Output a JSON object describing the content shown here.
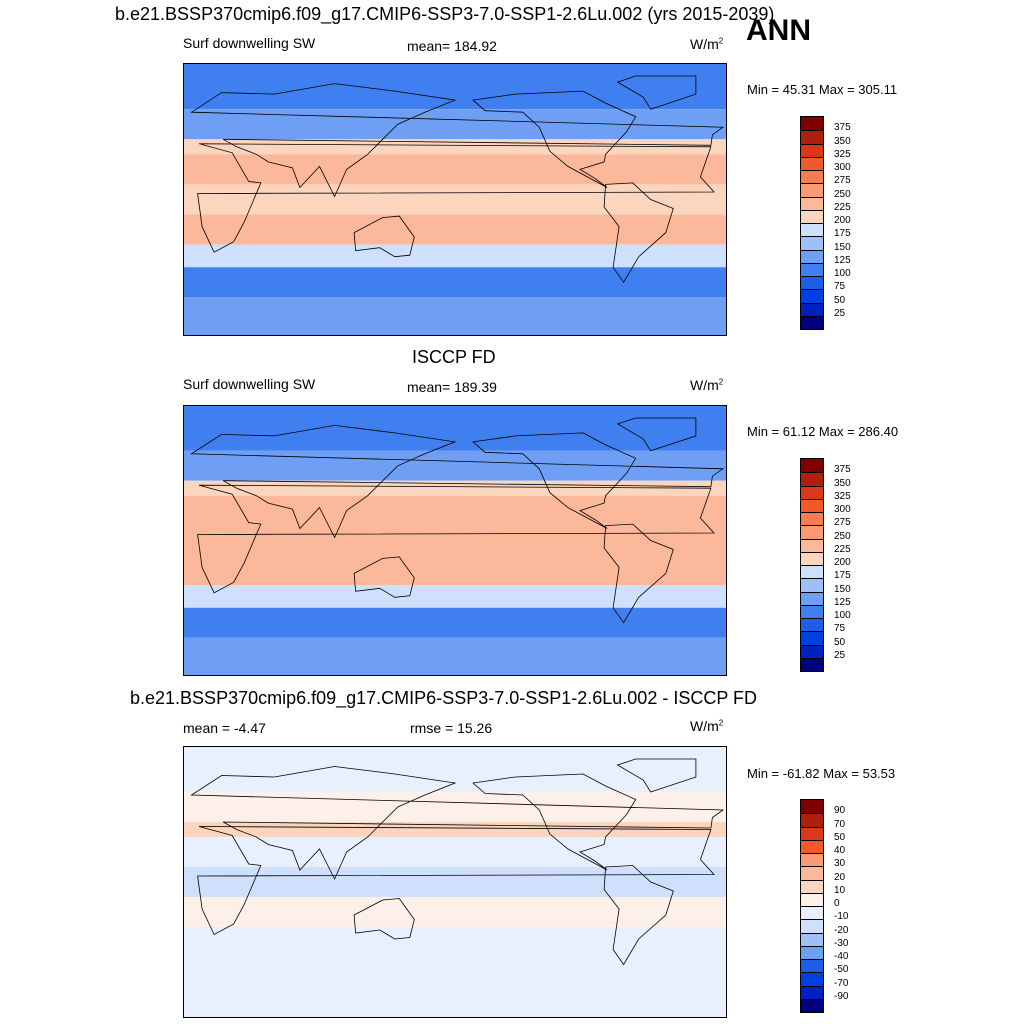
{
  "ann_label": "ANN",
  "palettes": {
    "abs": [
      "#00007f",
      "#0020c0",
      "#0040e0",
      "#1f5fe8",
      "#3f7ff0",
      "#6f9ff5",
      "#9fbff8",
      "#cfe0fc",
      "#fdeee3",
      "#fcd5bf",
      "#fbb89a",
      "#f99a75",
      "#f77c52",
      "#f05a2a",
      "#d9381a",
      "#b01e10",
      "#800000"
    ],
    "diff": [
      "#00007f",
      "#0020c0",
      "#0040e0",
      "#1f5fe8",
      "#3f7ff0",
      "#6f9ff5",
      "#9fbff8",
      "#cfe0fc",
      "#e8f0fe",
      "#fdf0e8",
      "#fcd5bf",
      "#fbb89a",
      "#f99a75",
      "#f77c52",
      "#f05a2a",
      "#d9381a",
      "#b01e10",
      "#800000"
    ]
  },
  "panels": [
    {
      "title": "b.e21.BSSP370cmip6.f09_g17.CMIP6-SSP3-7.0-SSP1-2.6Lu.002 (yrs 2015-2039)",
      "left_label": "Surf downwelling SW",
      "center_label": "mean= 184.92",
      "units_base": "W/m",
      "units_exp": "2",
      "minmax": "Min =  45.31 Max = 305.11",
      "colorbar_levels": [
        "375",
        "350",
        "325",
        "300",
        "275",
        "250",
        "225",
        "200",
        "175",
        "150",
        "125",
        "100",
        "75",
        "50",
        "25"
      ],
      "palette": "abs"
    },
    {
      "title": "ISCCP FD",
      "left_label": "Surf downwelling SW",
      "center_label": "mean= 189.39",
      "units_base": "W/m",
      "units_exp": "2",
      "minmax": "Min =  61.12 Max = 286.40",
      "colorbar_levels": [
        "375",
        "350",
        "325",
        "300",
        "275",
        "250",
        "225",
        "200",
        "175",
        "150",
        "125",
        "100",
        "75",
        "50",
        "25"
      ],
      "palette": "abs"
    },
    {
      "title": "b.e21.BSSP370cmip6.f09_g17.CMIP6-SSP3-7.0-SSP1-2.6Lu.002 - ISCCP FD",
      "left_label": "mean =  -4.47",
      "center_label": "rmse =  15.26",
      "units_base": "W/m",
      "units_exp": "2",
      "minmax": "Min = -61.82 Max =  53.53",
      "colorbar_levels": [
        "90",
        "70",
        "50",
        "40",
        "30",
        "20",
        "10",
        "0",
        "-10",
        "-20",
        "-30",
        "-40",
        "-50",
        "-70",
        "-90"
      ],
      "palette": "diff"
    }
  ],
  "chart_data": [
    {
      "type": "heatmap",
      "title": "b.e21.BSSP370cmip6.f09_g17.CMIP6-SSP3-7.0-SSP1-2.6Lu.002 (yrs 2015-2039)",
      "variable": "Surf downwelling SW",
      "mean": 184.92,
      "min": 45.31,
      "max": 305.11,
      "units": "W/m2",
      "contour_levels": [
        25,
        50,
        75,
        100,
        125,
        150,
        175,
        200,
        225,
        250,
        275,
        300,
        325,
        350,
        375
      ],
      "zonal_bands": [
        {
          "lat_range": [
            60,
            90
          ],
          "value": 100
        },
        {
          "lat_range": [
            40,
            60
          ],
          "value": 140
        },
        {
          "lat_range": [
            30,
            40
          ],
          "value": 200
        },
        {
          "lat_range": [
            10,
            30
          ],
          "value": 235
        },
        {
          "lat_range": [
            -10,
            10
          ],
          "value": 220
        },
        {
          "lat_range": [
            -30,
            -10
          ],
          "value": 245
        },
        {
          "lat_range": [
            -45,
            -30
          ],
          "value": 180
        },
        {
          "lat_range": [
            -65,
            -45
          ],
          "value": 100
        },
        {
          "lat_range": [
            -90,
            -65
          ],
          "value": 130
        }
      ]
    },
    {
      "type": "heatmap",
      "title": "ISCCP FD",
      "variable": "Surf downwelling SW",
      "mean": 189.39,
      "min": 61.12,
      "max": 286.4,
      "units": "W/m2",
      "contour_levels": [
        25,
        50,
        75,
        100,
        125,
        150,
        175,
        200,
        225,
        250,
        275,
        300,
        325,
        350,
        375
      ],
      "zonal_bands": [
        {
          "lat_range": [
            60,
            90
          ],
          "value": 100
        },
        {
          "lat_range": [
            40,
            60
          ],
          "value": 145
        },
        {
          "lat_range": [
            30,
            40
          ],
          "value": 205
        },
        {
          "lat_range": [
            10,
            30
          ],
          "value": 240
        },
        {
          "lat_range": [
            -10,
            10
          ],
          "value": 230
        },
        {
          "lat_range": [
            -30,
            -10
          ],
          "value": 245
        },
        {
          "lat_range": [
            -45,
            -30
          ],
          "value": 190
        },
        {
          "lat_range": [
            -65,
            -45
          ],
          "value": 105
        },
        {
          "lat_range": [
            -90,
            -65
          ],
          "value": 130
        }
      ]
    },
    {
      "type": "heatmap",
      "title": "b.e21.BSSP370cmip6.f09_g17.CMIP6-SSP3-7.0-SSP1-2.6Lu.002 - ISCCP FD",
      "mean": -4.47,
      "rmse": 15.26,
      "min": -61.82,
      "max": 53.53,
      "units": "W/m2",
      "contour_levels": [
        -90,
        -70,
        -50,
        -40,
        -30,
        -20,
        -10,
        0,
        10,
        20,
        30,
        40,
        50,
        70,
        90
      ],
      "zonal_bands": [
        {
          "lat_range": [
            60,
            90
          ],
          "value": -5
        },
        {
          "lat_range": [
            40,
            60
          ],
          "value": 5
        },
        {
          "lat_range": [
            30,
            40
          ],
          "value": 10
        },
        {
          "lat_range": [
            10,
            30
          ],
          "value": -5
        },
        {
          "lat_range": [
            -10,
            10
          ],
          "value": -15
        },
        {
          "lat_range": [
            -30,
            -10
          ],
          "value": 5
        },
        {
          "lat_range": [
            -45,
            -30
          ],
          "value": -5
        },
        {
          "lat_range": [
            -65,
            -45
          ],
          "value": -5
        },
        {
          "lat_range": [
            -90,
            -65
          ],
          "value": -5
        }
      ]
    }
  ]
}
